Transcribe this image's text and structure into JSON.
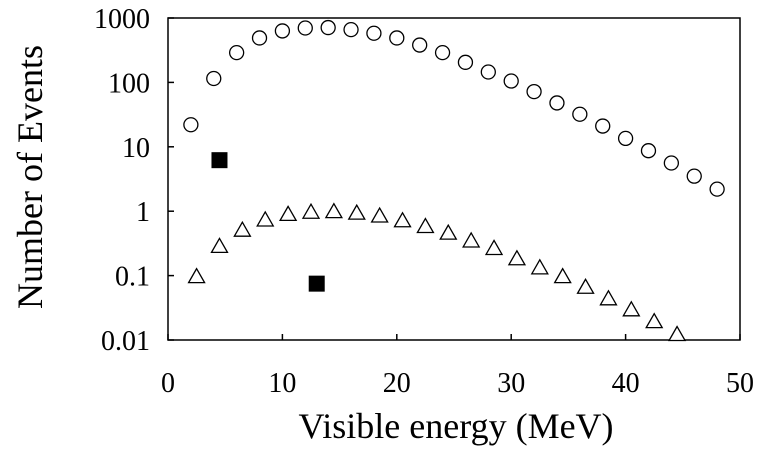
{
  "chart_data": {
    "type": "scatter",
    "title": "",
    "xlabel": "Visible energy (MeV)",
    "ylabel": "Number of Events",
    "xlim": [
      0,
      50
    ],
    "ylim": [
      0.01,
      1000
    ],
    "yscale": "log",
    "grid": false,
    "legend": "none",
    "x_ticks": [
      "0",
      "10",
      "20",
      "30",
      "40",
      "50"
    ],
    "y_ticks": [
      "0.01",
      "0.1",
      "1",
      "10",
      "100",
      "1000"
    ],
    "series": [
      {
        "marker": "open-circle",
        "x": [
          2,
          4,
          6,
          8,
          10,
          12,
          14,
          16,
          18,
          20,
          22,
          24,
          26,
          28,
          30,
          32,
          34,
          36,
          38,
          40,
          42,
          44,
          46,
          48
        ],
        "y": [
          22,
          115,
          290,
          490,
          630,
          700,
          710,
          660,
          580,
          490,
          380,
          290,
          205,
          145,
          105,
          72,
          48,
          32,
          21,
          13.5,
          8.7,
          5.6,
          3.5,
          2.2
        ]
      },
      {
        "marker": "open-triangle",
        "x": [
          2.5,
          4.5,
          6.5,
          8.5,
          10.5,
          12.5,
          14.5,
          16.5,
          18.5,
          20.5,
          22.5,
          24.5,
          26.5,
          28.5,
          30.5,
          32.5,
          34.5,
          36.5,
          38.5,
          40.5,
          42.5,
          44.5
        ],
        "y": [
          0.095,
          0.28,
          0.5,
          0.72,
          0.88,
          0.95,
          0.97,
          0.92,
          0.83,
          0.7,
          0.57,
          0.45,
          0.34,
          0.26,
          0.18,
          0.13,
          0.095,
          0.065,
          0.043,
          0.029,
          0.019,
          0.012
        ]
      },
      {
        "marker": "filled-square",
        "x": [
          4.5,
          13
        ],
        "y": [
          6.2,
          0.075
        ]
      }
    ]
  }
}
